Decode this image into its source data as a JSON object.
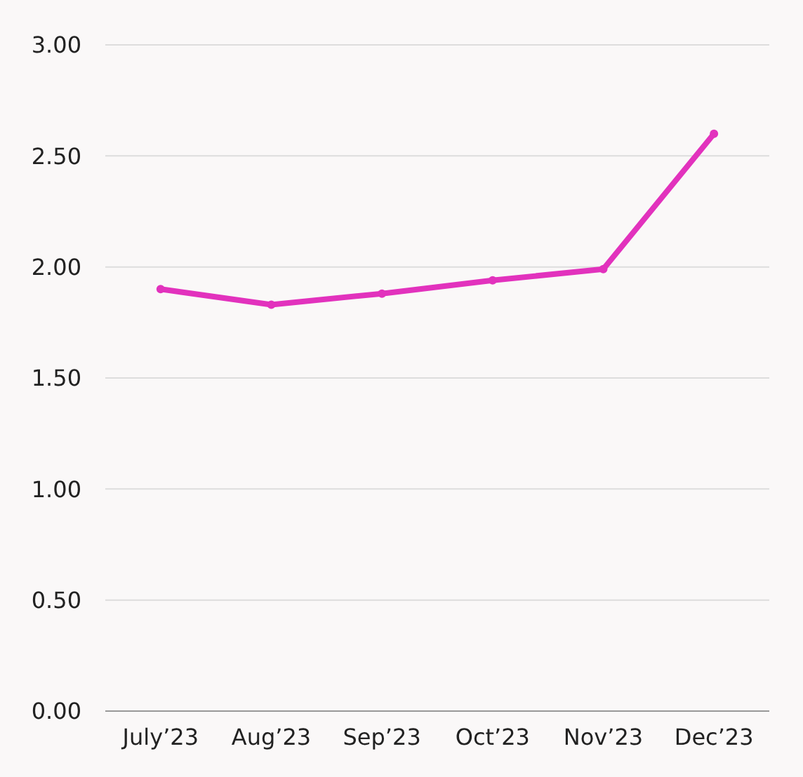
{
  "chart_data": {
    "type": "line",
    "categories": [
      "July’23",
      "Aug’23",
      "Sep’23",
      "Oct’23",
      "Nov’23",
      "Dec’23"
    ],
    "series": [
      {
        "color": "#e232bd",
        "values": [
          1.9,
          1.83,
          1.88,
          1.94,
          1.99,
          2.6
        ]
      }
    ],
    "ylim": [
      0,
      3
    ],
    "yticks": [
      {
        "value": 0,
        "label": "0.00"
      },
      {
        "value": 0.5,
        "label": "0.50"
      },
      {
        "value": 1,
        "label": "1.00"
      },
      {
        "value": 1.5,
        "label": "1.50"
      },
      {
        "value": 2,
        "label": "2.00"
      },
      {
        "value": 2.5,
        "label": "2.50"
      },
      {
        "value": 3,
        "label": "3.00"
      }
    ],
    "grid": "y",
    "marker": "circle",
    "line_style": "solid"
  }
}
